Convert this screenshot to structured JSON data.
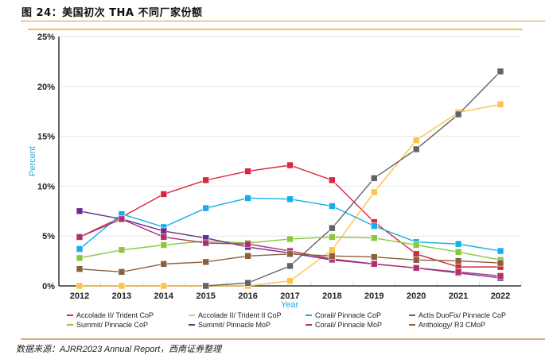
{
  "figure": {
    "title": "图 24：美国初次 THA 不同厂家份额",
    "source": "数据来源：AJRR2023 Annual Report，西南证券整理"
  },
  "chart_data": {
    "type": "line",
    "title": "",
    "xlabel": "Year",
    "ylabel": "Percent",
    "x": [
      "2012",
      "2013",
      "2014",
      "2015",
      "2016",
      "2017",
      "2018",
      "2019",
      "2020",
      "2021",
      "2022"
    ],
    "ylim": [
      0,
      25
    ],
    "yticks": [
      "0%",
      "5%",
      "10%",
      "15%",
      "20%",
      "25%"
    ],
    "grid": true,
    "legend_position": "bottom",
    "series": [
      {
        "name": "Accolade II/ Trident CoP",
        "color": "#d7263d",
        "values": [
          4.9,
          6.9,
          9.2,
          10.6,
          11.5,
          12.1,
          10.6,
          6.4,
          3.2,
          1.9,
          1.9
        ]
      },
      {
        "name": "Accolade II/ Trident II CoP",
        "color": "#fcc24c",
        "values": [
          0,
          0,
          0,
          0,
          0,
          0.5,
          3.6,
          9.4,
          14.6,
          17.4,
          18.2
        ]
      },
      {
        "name": "Corail/ Pinnacle CoP",
        "color": "#15aee8",
        "values": [
          3.7,
          7.2,
          5.9,
          7.8,
          8.8,
          8.7,
          8.0,
          6.0,
          4.4,
          4.2,
          3.5
        ]
      },
      {
        "name": "Actis DuoFix/ Pinnacle CoP",
        "color": "#626366",
        "values": [
          null,
          null,
          null,
          0,
          0.3,
          2.0,
          5.8,
          10.8,
          13.7,
          17.2,
          21.5
        ]
      },
      {
        "name": "Summit/ Pinnacle CoP",
        "color": "#8cc63f",
        "values": [
          2.8,
          3.6,
          4.1,
          4.5,
          4.3,
          4.7,
          4.9,
          4.8,
          4.1,
          3.4,
          2.6
        ]
      },
      {
        "name": "Summit/ Pinnacle MoP",
        "color": "#6a2c91",
        "values": [
          7.5,
          6.7,
          5.5,
          4.8,
          3.9,
          3.3,
          2.6,
          2.2,
          1.8,
          1.3,
          0.8
        ]
      },
      {
        "name": "Corail/ Pinnacle MoP",
        "color": "#b0306e",
        "values": [
          4.9,
          6.7,
          4.9,
          4.3,
          4.2,
          3.5,
          2.7,
          2.2,
          1.8,
          1.4,
          1.0
        ]
      },
      {
        "name": "Anthology/ R3 CMoP",
        "color": "#8b5e3c",
        "values": [
          1.7,
          1.4,
          2.2,
          2.4,
          3.0,
          3.2,
          3.0,
          2.9,
          2.6,
          2.5,
          2.3
        ]
      }
    ]
  }
}
